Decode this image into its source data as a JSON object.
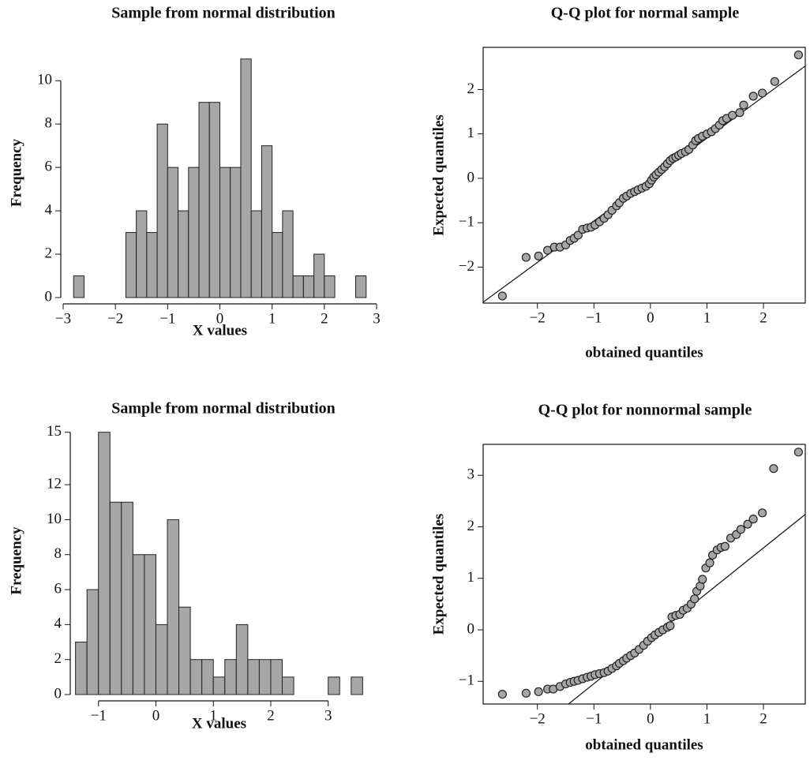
{
  "chart_data": [
    {
      "type": "histogram",
      "title": "Sample from normal distribution",
      "xlabel": "X values",
      "ylabel": "Frequency",
      "bins": [
        -2.8,
        -2.6,
        -2.4,
        -2.2,
        -2.0,
        -1.8,
        -1.6,
        -1.4,
        -1.2,
        -1.0,
        -0.8,
        -0.6,
        -0.4,
        -0.2,
        0,
        0.2,
        0.4,
        0.6,
        0.8,
        1.0,
        1.2,
        1.4,
        1.6,
        1.8,
        2.0,
        2.2,
        2.4,
        2.6,
        2.8
      ],
      "counts": [
        1,
        0,
        0,
        0,
        0,
        3,
        4,
        3,
        8,
        6,
        4,
        6,
        9,
        9,
        6,
        6,
        11,
        4,
        7,
        3,
        4,
        1,
        1,
        2,
        1,
        0,
        0,
        1
      ],
      "color": "#a6a6a6",
      "xlim": [
        -3,
        3
      ],
      "ylim": [
        0,
        11.5
      ],
      "xticks": [
        {
          "value": -3,
          "label": "−3"
        },
        {
          "value": -2,
          "label": "−2"
        },
        {
          "value": -1,
          "label": "−1"
        },
        0,
        1,
        2,
        3
      ],
      "yticks": [
        0,
        2,
        4,
        6,
        8,
        10
      ]
    },
    {
      "type": "scatter",
      "title": "Q-Q plot for normal sample",
      "xlabel": "obtained quantiles",
      "ylabel": "Expected quantiles",
      "x": [
        -2.62,
        -2.2,
        -1.98,
        -1.82,
        -1.7,
        -1.6,
        -1.5,
        -1.42,
        -1.35,
        -1.28,
        -1.2,
        -1.12,
        -1.05,
        -0.98,
        -0.9,
        -0.82,
        -0.75,
        -0.68,
        -0.6,
        -0.55,
        -0.48,
        -0.42,
        -0.35,
        -0.28,
        -0.22,
        -0.15,
        -0.08,
        -0.02,
        0.02,
        0.06,
        0.1,
        0.15,
        0.2,
        0.25,
        0.3,
        0.35,
        0.4,
        0.45,
        0.5,
        0.55,
        0.62,
        0.68,
        0.75,
        0.8,
        0.85,
        0.92,
        1.0,
        1.08,
        1.15,
        1.22,
        1.28,
        1.35,
        1.45,
        1.58,
        1.65,
        1.82,
        1.98,
        2.2,
        2.62
      ],
      "y": [
        -2.65,
        -1.78,
        -1.75,
        -1.62,
        -1.55,
        -1.55,
        -1.5,
        -1.4,
        -1.35,
        -1.28,
        -1.15,
        -1.12,
        -1.1,
        -1.05,
        -0.98,
        -0.9,
        -0.82,
        -0.72,
        -0.62,
        -0.55,
        -0.45,
        -0.4,
        -0.34,
        -0.3,
        -0.26,
        -0.22,
        -0.18,
        -0.12,
        -0.04,
        0.03,
        0.08,
        0.14,
        0.2,
        0.26,
        0.33,
        0.4,
        0.45,
        0.48,
        0.52,
        0.56,
        0.6,
        0.65,
        0.75,
        0.85,
        0.9,
        0.95,
        1.0,
        1.05,
        1.12,
        1.2,
        1.3,
        1.35,
        1.42,
        1.48,
        1.65,
        1.85,
        1.92,
        2.18,
        2.78
      ],
      "reference_line": {
        "x": [
          -2.96,
          2.74
        ],
        "y": [
          -2.79,
          2.53
        ]
      },
      "color": "#a6a6a6",
      "xlim": [
        -2.96,
        2.74
      ],
      "ylim": [
        -2.81,
        2.95
      ],
      "xticks": [
        {
          "value": -2,
          "label": "−2"
        },
        {
          "value": -1,
          "label": "−1"
        },
        0,
        1,
        2
      ],
      "yticks": [
        {
          "value": -2,
          "label": "−2"
        },
        {
          "value": -1,
          "label": "−1"
        },
        0,
        1,
        2
      ]
    },
    {
      "type": "histogram",
      "title": "Sample from normal distribution",
      "xlabel": "X values",
      "ylabel": "Frequency",
      "bins": [
        -1.4,
        -1.2,
        -1.0,
        -0.8,
        -0.6,
        -0.4,
        -0.2,
        0,
        0.2,
        0.4,
        0.6,
        0.8,
        1.0,
        1.2,
        1.4,
        1.6,
        1.8,
        2.0,
        2.2,
        2.4,
        2.6,
        2.8,
        3.0,
        3.2,
        3.4,
        3.6
      ],
      "counts": [
        3,
        6,
        15,
        11,
        11,
        8,
        8,
        4,
        10,
        5,
        2,
        2,
        1,
        2,
        4,
        2,
        2,
        2,
        1,
        0,
        0,
        0,
        1,
        0,
        1
      ],
      "color": "#a6a6a6",
      "xlim": [
        -1.45,
        3.65
      ],
      "ylim": [
        0,
        15.3
      ],
      "xticks": [
        {
          "value": -1,
          "label": "−1"
        },
        0,
        1,
        2,
        3
      ],
      "yticks": [
        0,
        2,
        4,
        6,
        8,
        10,
        12,
        15
      ]
    },
    {
      "type": "scatter",
      "title": "Q-Q plot for nonnormal sample",
      "xlabel": "obtained quantiles",
      "ylabel": "Expected quantiles",
      "x": [
        -2.62,
        -2.2,
        -1.98,
        -1.82,
        -1.72,
        -1.6,
        -1.5,
        -1.42,
        -1.35,
        -1.28,
        -1.2,
        -1.12,
        -1.05,
        -0.98,
        -0.9,
        -0.82,
        -0.75,
        -0.68,
        -0.6,
        -0.55,
        -0.48,
        -0.42,
        -0.35,
        -0.28,
        -0.2,
        -0.12,
        -0.05,
        0.02,
        0.08,
        0.15,
        0.22,
        0.3,
        0.35,
        0.38,
        0.45,
        0.52,
        0.58,
        0.65,
        0.72,
        0.78,
        0.82,
        0.88,
        0.92,
        0.98,
        1.05,
        1.1,
        1.18,
        1.25,
        1.32,
        1.42,
        1.52,
        1.6,
        1.72,
        1.82,
        1.98,
        2.18,
        2.62
      ],
      "y": [
        -1.25,
        -1.23,
        -1.2,
        -1.15,
        -1.15,
        -1.1,
        -1.05,
        -1.02,
        -1.0,
        -0.98,
        -0.95,
        -0.92,
        -0.9,
        -0.87,
        -0.85,
        -0.83,
        -0.8,
        -0.75,
        -0.7,
        -0.65,
        -0.6,
        -0.55,
        -0.5,
        -0.45,
        -0.38,
        -0.3,
        -0.22,
        -0.15,
        -0.1,
        -0.05,
        0.0,
        0.05,
        0.08,
        0.25,
        0.28,
        0.3,
        0.38,
        0.42,
        0.5,
        0.6,
        0.75,
        0.85,
        0.98,
        1.2,
        1.3,
        1.45,
        1.55,
        1.6,
        1.62,
        1.78,
        1.85,
        1.95,
        2.05,
        2.15,
        2.27,
        3.13,
        3.45
      ],
      "reference_line": {
        "x": [
          -1.45,
          2.74
        ],
        "y": [
          -1.44,
          2.24
        ]
      },
      "color": "#a6a6a6",
      "xlim": [
        -2.96,
        2.74
      ],
      "ylim": [
        -1.44,
        3.6
      ],
      "xticks": [
        {
          "value": -2,
          "label": "−2"
        },
        {
          "value": -1,
          "label": "−1"
        },
        0,
        1,
        2
      ],
      "yticks": [
        {
          "value": -1,
          "label": "−1"
        },
        0,
        1,
        2,
        3
      ]
    }
  ]
}
